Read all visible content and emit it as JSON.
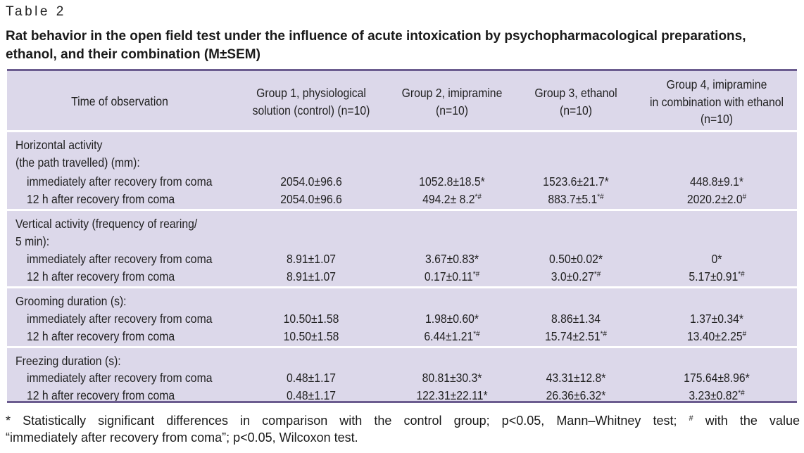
{
  "table_label": "Table 2",
  "caption": "Rat behavior in the open field test under the influence of acute intoxication by psychopharmacological preparations, ethanol, and their combination (M±SEM)",
  "caption_lines": [
    "Rat behavior in the open field test under the influence of acute intoxication by psychopharmacological preparations,",
    "ethanol, and their combination (M±SEM)"
  ],
  "header": {
    "col0": [
      "Time of observation"
    ],
    "col1": [
      "Group 1, physiological",
      "solution (control) (n=10)"
    ],
    "col2": [
      "Group 2, imipramine",
      "(n=10)"
    ],
    "col3": [
      "Group 3, ethanol",
      "(n=10)"
    ],
    "col4": [
      "Group 4, imipramine",
      "in combination with ethanol",
      "(n=10)"
    ]
  },
  "sections": [
    {
      "title_lines": [
        "Horizontal activity",
        "(the path travelled) (mm):"
      ],
      "rows": [
        {
          "label": "immediately after recovery from coma",
          "values": [
            {
              "v": "2054.0±96.6",
              "sup": ""
            },
            {
              "v": "1052.8±18.5*",
              "sup": ""
            },
            {
              "v": "1523.6±21.7*",
              "sup": ""
            },
            {
              "v": "448.8±9.1*",
              "sup": ""
            }
          ]
        },
        {
          "label": "12 h after recovery from coma",
          "values": [
            {
              "v": "2054.0±96.6",
              "sup": ""
            },
            {
              "v": "494.2± 8.2",
              "sup": "*#"
            },
            {
              "v": "883.7±5.1",
              "sup": "*#"
            },
            {
              "v": "2020.2±2.0",
              "sup": "#"
            }
          ]
        }
      ]
    },
    {
      "title_lines": [
        "Vertical activity (frequency of rearing/",
        "5 min):"
      ],
      "rows": [
        {
          "label": "immediately after recovery from coma",
          "values": [
            {
              "v": "8.91±1.07",
              "sup": ""
            },
            {
              "v": "3.67±0.83*",
              "sup": ""
            },
            {
              "v": "0.50±0.02*",
              "sup": ""
            },
            {
              "v": "0*",
              "sup": ""
            }
          ]
        },
        {
          "label": "12 h after recovery from coma",
          "values": [
            {
              "v": "8.91±1.07",
              "sup": ""
            },
            {
              "v": "0.17±0.11",
              "sup": "*#"
            },
            {
              "v": "3.0±0.27",
              "sup": "*#"
            },
            {
              "v": "5.17±0.91",
              "sup": "*#"
            }
          ]
        }
      ]
    },
    {
      "title_lines": [
        "Grooming duration (s):"
      ],
      "rows": [
        {
          "label": "immediately after recovery from coma",
          "values": [
            {
              "v": "10.50±1.58",
              "sup": ""
            },
            {
              "v": "1.98±0.60*",
              "sup": ""
            },
            {
              "v": "8.86±1.34",
              "sup": ""
            },
            {
              "v": "1.37±0.34*",
              "sup": ""
            }
          ]
        },
        {
          "label": "12 h after recovery from coma",
          "values": [
            {
              "v": "10.50±1.58",
              "sup": ""
            },
            {
              "v": "6.44±1.21",
              "sup": "*#"
            },
            {
              "v": "15.74±2.51",
              "sup": "*#"
            },
            {
              "v": "13.40±2.25",
              "sup": "#"
            }
          ]
        }
      ]
    },
    {
      "title_lines": [
        "Freezing duration (s):"
      ],
      "rows": [
        {
          "label": "immediately after recovery from coma",
          "values": [
            {
              "v": "0.48±1.17",
              "sup": ""
            },
            {
              "v": "80.81±30.3*",
              "sup": ""
            },
            {
              "v": "43.31±12.8*",
              "sup": ""
            },
            {
              "v": "175.64±8.96*",
              "sup": ""
            }
          ]
        },
        {
          "label": "12 h after recovery from coma",
          "values": [
            {
              "v": "0.48±1.17",
              "sup": ""
            },
            {
              "v": "122.31±22.11*",
              "sup": ""
            },
            {
              "v": "26.36±6.32*",
              "sup": ""
            },
            {
              "v": "3.23±0.82",
              "sup": "*#"
            }
          ]
        }
      ]
    }
  ],
  "footnote": {
    "line1_a": "* Statistically significant differences in comparison with the control group; p<0.05, Mann–Whitney test;",
    "line1_sup": "#",
    "line1_b": "with the value",
    "line2": "“immediately after recovery from coma”; p<0.05, Wilcoxon test."
  },
  "colors": {
    "table_bg": "#dcd8ea",
    "rule": "#6b5c8f",
    "separator": "#ffffff"
  }
}
